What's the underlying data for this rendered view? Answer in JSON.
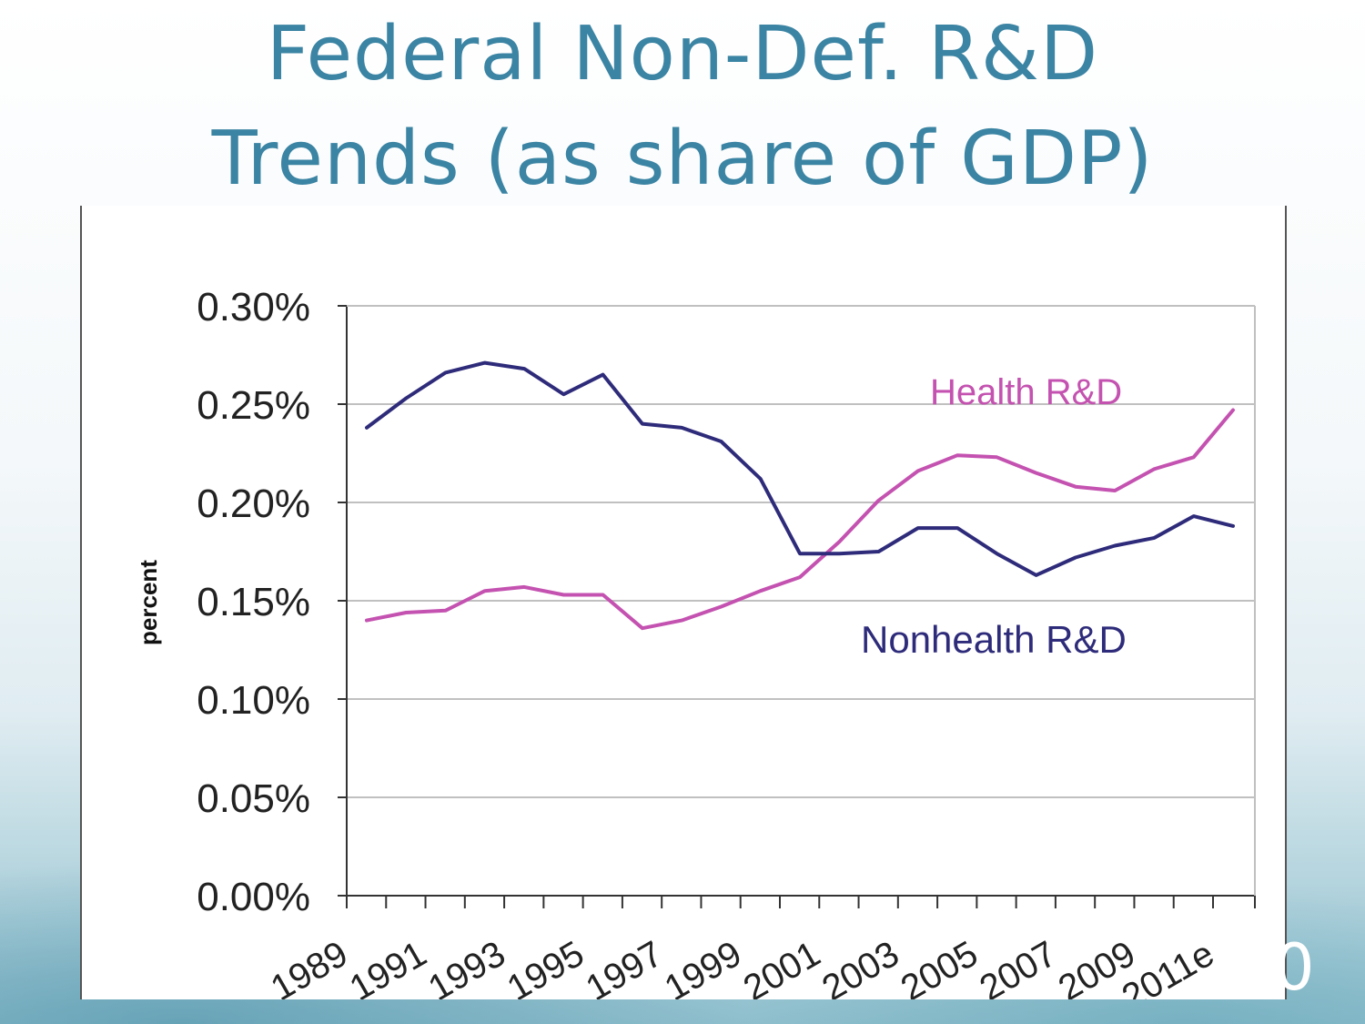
{
  "slide": {
    "title_line_1": "Federal Non-Def. R&D",
    "title_line_2": "Trends (as share of GDP)",
    "slide_number": "0"
  },
  "colors": {
    "title": "#3b84a3",
    "health": "#c452b0",
    "nonhealth": "#2e2b7a",
    "grid": "#c0c0c0",
    "axis": "#333333"
  },
  "chart_data": {
    "type": "line",
    "ylabel": "percent",
    "xlabel": "",
    "ylim": [
      0,
      0.3
    ],
    "y_ticks": [
      "0.00%",
      "0.05%",
      "0.10%",
      "0.15%",
      "0.20%",
      "0.25%",
      "0.30%"
    ],
    "x_tick_labels": [
      "1989",
      "1991",
      "1993",
      "1995",
      "1997",
      "1999",
      "2001",
      "2003",
      "2005",
      "2007",
      "2009",
      "2011e"
    ],
    "x": [
      1989,
      1990,
      1991,
      1992,
      1993,
      1994,
      1995,
      1996,
      1997,
      1998,
      1999,
      2000,
      2001,
      2002,
      2003,
      2004,
      2005,
      2006,
      2007,
      2008,
      2009,
      2010,
      2011
    ],
    "grid": true,
    "series": [
      {
        "name": "Health R&D",
        "values": [
          0.14,
          0.144,
          0.145,
          0.155,
          0.157,
          0.153,
          0.153,
          0.136,
          0.14,
          0.147,
          0.155,
          0.162,
          0.18,
          0.201,
          0.216,
          0.224,
          0.223,
          0.215,
          0.208,
          0.206,
          0.217,
          0.223,
          0.247
        ]
      },
      {
        "name": "Nonhealth R&D",
        "values": [
          0.238,
          0.253,
          0.266,
          0.271,
          0.268,
          0.255,
          0.265,
          0.24,
          0.238,
          0.231,
          0.212,
          0.174,
          0.174,
          0.175,
          0.187,
          0.187,
          0.174,
          0.163,
          0.172,
          0.178,
          0.182,
          0.193,
          0.188
        ]
      }
    ]
  }
}
